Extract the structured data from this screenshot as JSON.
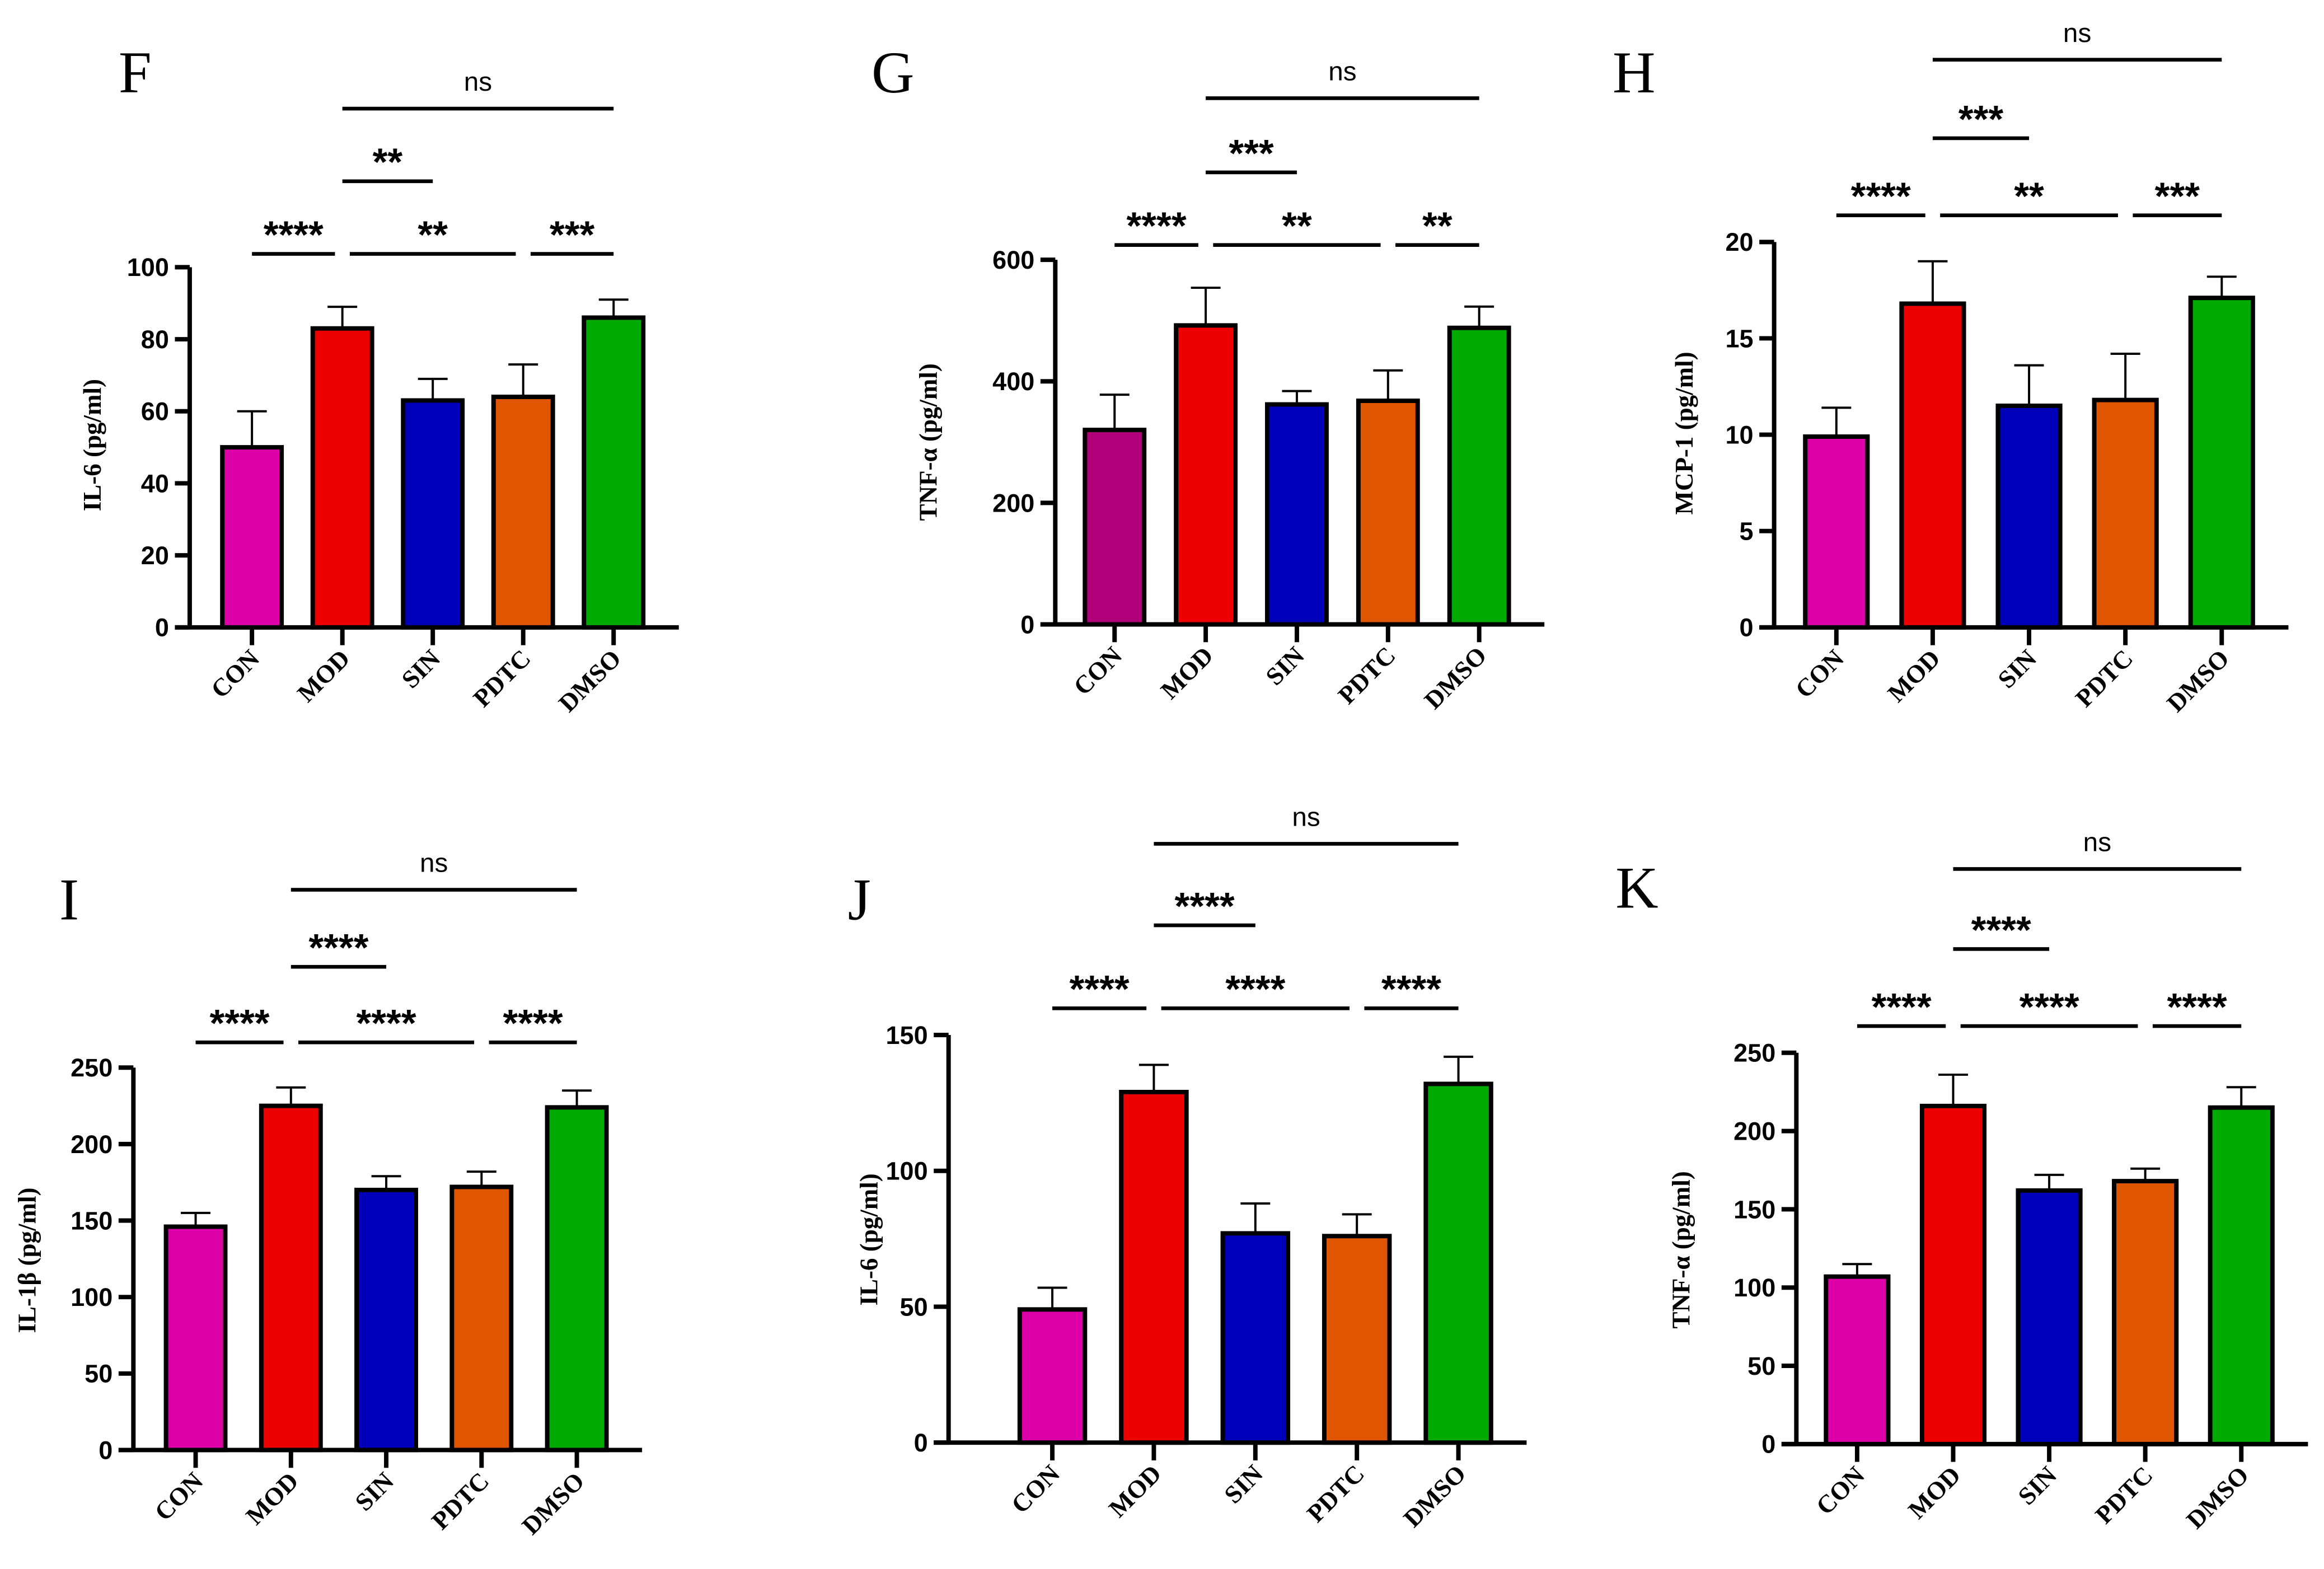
{
  "colors": {
    "CON": "#dd00a8",
    "MOD": "#ee0000",
    "SIN": "#0000bb",
    "PDTC": "#e05500",
    "DMSO": "#00aa00",
    "CON_G": "#b0007a"
  },
  "chart_data": [
    {
      "panel": "F",
      "type": "bar",
      "ylabel": "IL-6 (pg/ml)",
      "ylim": [
        0,
        100
      ],
      "yticks": [
        0,
        20,
        40,
        60,
        80,
        100
      ],
      "categories": [
        "CON",
        "MOD",
        "SIN",
        "PDTC",
        "DMSO"
      ],
      "values": [
        50,
        83,
        63,
        64,
        86
      ],
      "errors": [
        10,
        6,
        6,
        9,
        5
      ],
      "significance": [
        {
          "from": "CON",
          "to": "MOD",
          "label": "****"
        },
        {
          "from": "MOD",
          "to": "PDTC",
          "label": "**"
        },
        {
          "from": "PDTC",
          "to": "DMSO",
          "label": "***"
        },
        {
          "from": "MOD",
          "to": "SIN",
          "label": "**"
        },
        {
          "from": "MOD",
          "to": "DMSO",
          "label": "ns"
        }
      ]
    },
    {
      "panel": "G",
      "type": "bar",
      "ylabel": "TNF-α (pg/ml)",
      "ylim": [
        0,
        600
      ],
      "yticks": [
        0,
        200,
        400,
        600
      ],
      "categories": [
        "CON",
        "MOD",
        "SIN",
        "PDTC",
        "DMSO"
      ],
      "values": [
        320,
        492,
        362,
        368,
        488
      ],
      "errors": [
        58,
        62,
        22,
        50,
        35
      ],
      "significance": [
        {
          "from": "CON",
          "to": "MOD",
          "label": "****"
        },
        {
          "from": "MOD",
          "to": "PDTC",
          "label": "**"
        },
        {
          "from": "PDTC",
          "to": "DMSO",
          "label": "**"
        },
        {
          "from": "MOD",
          "to": "SIN",
          "label": "***"
        },
        {
          "from": "MOD",
          "to": "DMSO",
          "label": "ns"
        }
      ]
    },
    {
      "panel": "H",
      "type": "bar",
      "ylabel": "MCP-1 (pg/ml)",
      "ylim": [
        0,
        20
      ],
      "yticks": [
        0,
        5,
        10,
        15,
        20
      ],
      "categories": [
        "CON",
        "MOD",
        "SIN",
        "PDTC",
        "DMSO"
      ],
      "values": [
        9.9,
        16.8,
        11.5,
        11.8,
        17.1
      ],
      "errors": [
        1.5,
        2.2,
        2.1,
        2.4,
        1.1
      ],
      "significance": [
        {
          "from": "CON",
          "to": "MOD",
          "label": "****"
        },
        {
          "from": "MOD",
          "to": "PDTC",
          "label": "**"
        },
        {
          "from": "PDTC",
          "to": "DMSO",
          "label": "***"
        },
        {
          "from": "MOD",
          "to": "SIN",
          "label": "***"
        },
        {
          "from": "MOD",
          "to": "DMSO",
          "label": "ns"
        }
      ]
    },
    {
      "panel": "I",
      "type": "bar",
      "ylabel": "IL-1β (pg/ml)",
      "ylim": [
        0,
        250
      ],
      "yticks": [
        0,
        50,
        100,
        150,
        200,
        250
      ],
      "categories": [
        "CON",
        "MOD",
        "SIN",
        "PDTC",
        "DMSO"
      ],
      "values": [
        146,
        225,
        170,
        172,
        224
      ],
      "errors": [
        9,
        12,
        9,
        10,
        11
      ],
      "significance": [
        {
          "from": "CON",
          "to": "MOD",
          "label": "****"
        },
        {
          "from": "MOD",
          "to": "PDTC",
          "label": "****"
        },
        {
          "from": "PDTC",
          "to": "DMSO",
          "label": "****"
        },
        {
          "from": "MOD",
          "to": "SIN",
          "label": "****"
        },
        {
          "from": "MOD",
          "to": "DMSO",
          "label": "ns"
        }
      ]
    },
    {
      "panel": "J",
      "type": "bar",
      "ylabel": "IL-6 (pg/ml)",
      "ylim": [
        0,
        150
      ],
      "yticks": [
        0,
        50,
        100,
        150
      ],
      "categories": [
        "CON",
        "MOD",
        "SIN",
        "PDTC",
        "DMSO"
      ],
      "values": [
        49,
        129,
        77,
        76,
        132
      ],
      "errors": [
        8,
        10,
        11,
        8,
        10
      ],
      "significance": [
        {
          "from": "CON",
          "to": "MOD",
          "label": "****"
        },
        {
          "from": "MOD",
          "to": "PDTC",
          "label": "****"
        },
        {
          "from": "PDTC",
          "to": "DMSO",
          "label": "****"
        },
        {
          "from": "MOD",
          "to": "SIN",
          "label": "****"
        },
        {
          "from": "MOD",
          "to": "DMSO",
          "label": "ns"
        }
      ]
    },
    {
      "panel": "K",
      "type": "bar",
      "ylabel": "TNF-α (pg/ml)",
      "ylim": [
        0,
        250
      ],
      "yticks": [
        0,
        50,
        100,
        150,
        200,
        250
      ],
      "categories": [
        "CON",
        "MOD",
        "SIN",
        "PDTC",
        "DMSO"
      ],
      "values": [
        107,
        216,
        162,
        168,
        215
      ],
      "errors": [
        8,
        20,
        10,
        8,
        13
      ],
      "significance": [
        {
          "from": "CON",
          "to": "MOD",
          "label": "****"
        },
        {
          "from": "MOD",
          "to": "PDTC",
          "label": "****"
        },
        {
          "from": "PDTC",
          "to": "DMSO",
          "label": "****"
        },
        {
          "from": "MOD",
          "to": "SIN",
          "label": "****"
        },
        {
          "from": "MOD",
          "to": "DMSO",
          "label": "ns"
        }
      ]
    }
  ]
}
